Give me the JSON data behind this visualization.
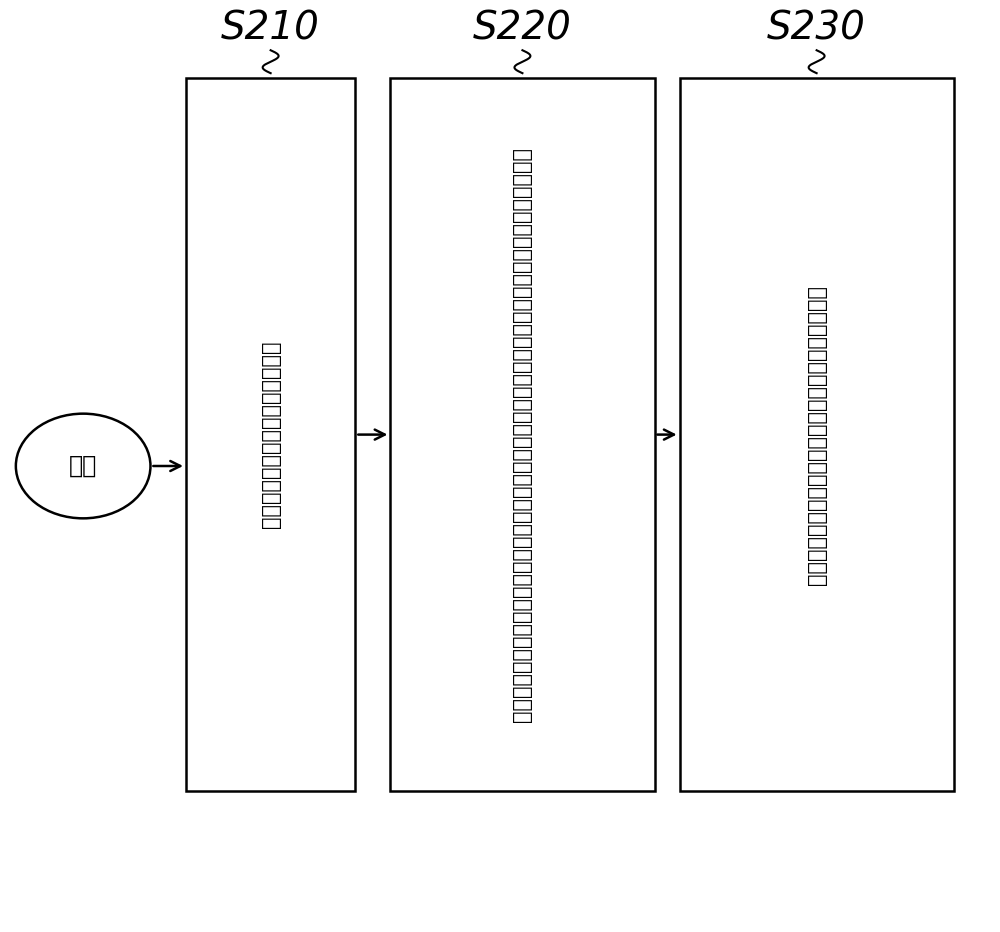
{
  "bg_color": "#ffffff",
  "start_label": "开始",
  "step_labels": [
    "计算在时间区间内的平均负载情形",
    "判断交换器是否处于第一模式或存取点的第二系统时间是否属于第二预设时间区间，并据以产生判断结果",
    "基于平均负载情形以及判断结果决定存取点的传送范围"
  ],
  "step_ids": [
    "S210",
    "S220",
    "S230"
  ],
  "arrow_color": "#000000",
  "box_color": "#ffffff",
  "box_edge_color": "#000000",
  "text_color": "#000000",
  "font_size": 15,
  "id_font_size": 28
}
